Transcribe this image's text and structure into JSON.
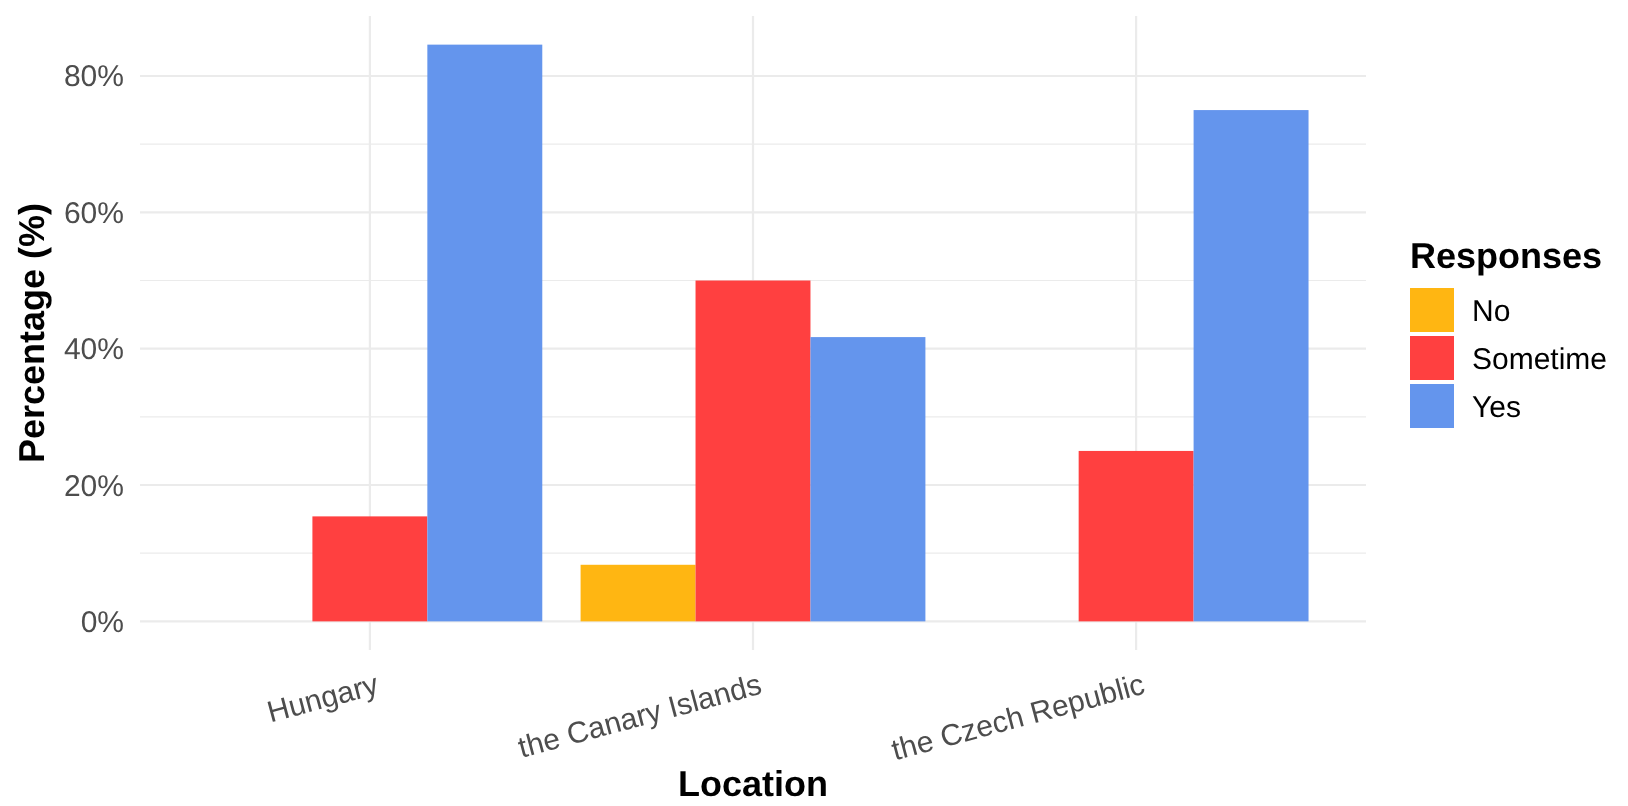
{
  "chart_data": {
    "type": "bar",
    "xlabel": "Location",
    "ylabel": "Percentage (%)",
    "legend_title": "Responses",
    "legend": "right",
    "grid": true,
    "categories": [
      "Hungary",
      "the Canary Islands",
      "the Czech Republic"
    ],
    "series": [
      {
        "name": "No",
        "color": "#ffb612",
        "values": [
          null,
          8.3,
          null
        ]
      },
      {
        "name": "Sometime",
        "color": "#ff4040",
        "values": [
          15.4,
          50,
          25
        ]
      },
      {
        "name": "Yes",
        "color": "#6495ed",
        "values": [
          84.6,
          41.7,
          75
        ]
      }
    ],
    "ylim": [
      -4.2,
      88.8
    ],
    "yticks": [
      {
        "value": 0,
        "label": "0%"
      },
      {
        "value": 10,
        "label": null
      },
      {
        "value": 20,
        "label": "20%"
      },
      {
        "value": 30,
        "label": null
      },
      {
        "value": 40,
        "label": "40%"
      },
      {
        "value": 50,
        "label": null
      },
      {
        "value": 60,
        "label": "60%"
      },
      {
        "value": 70,
        "label": null
      },
      {
        "value": 80,
        "label": "80%"
      }
    ]
  }
}
